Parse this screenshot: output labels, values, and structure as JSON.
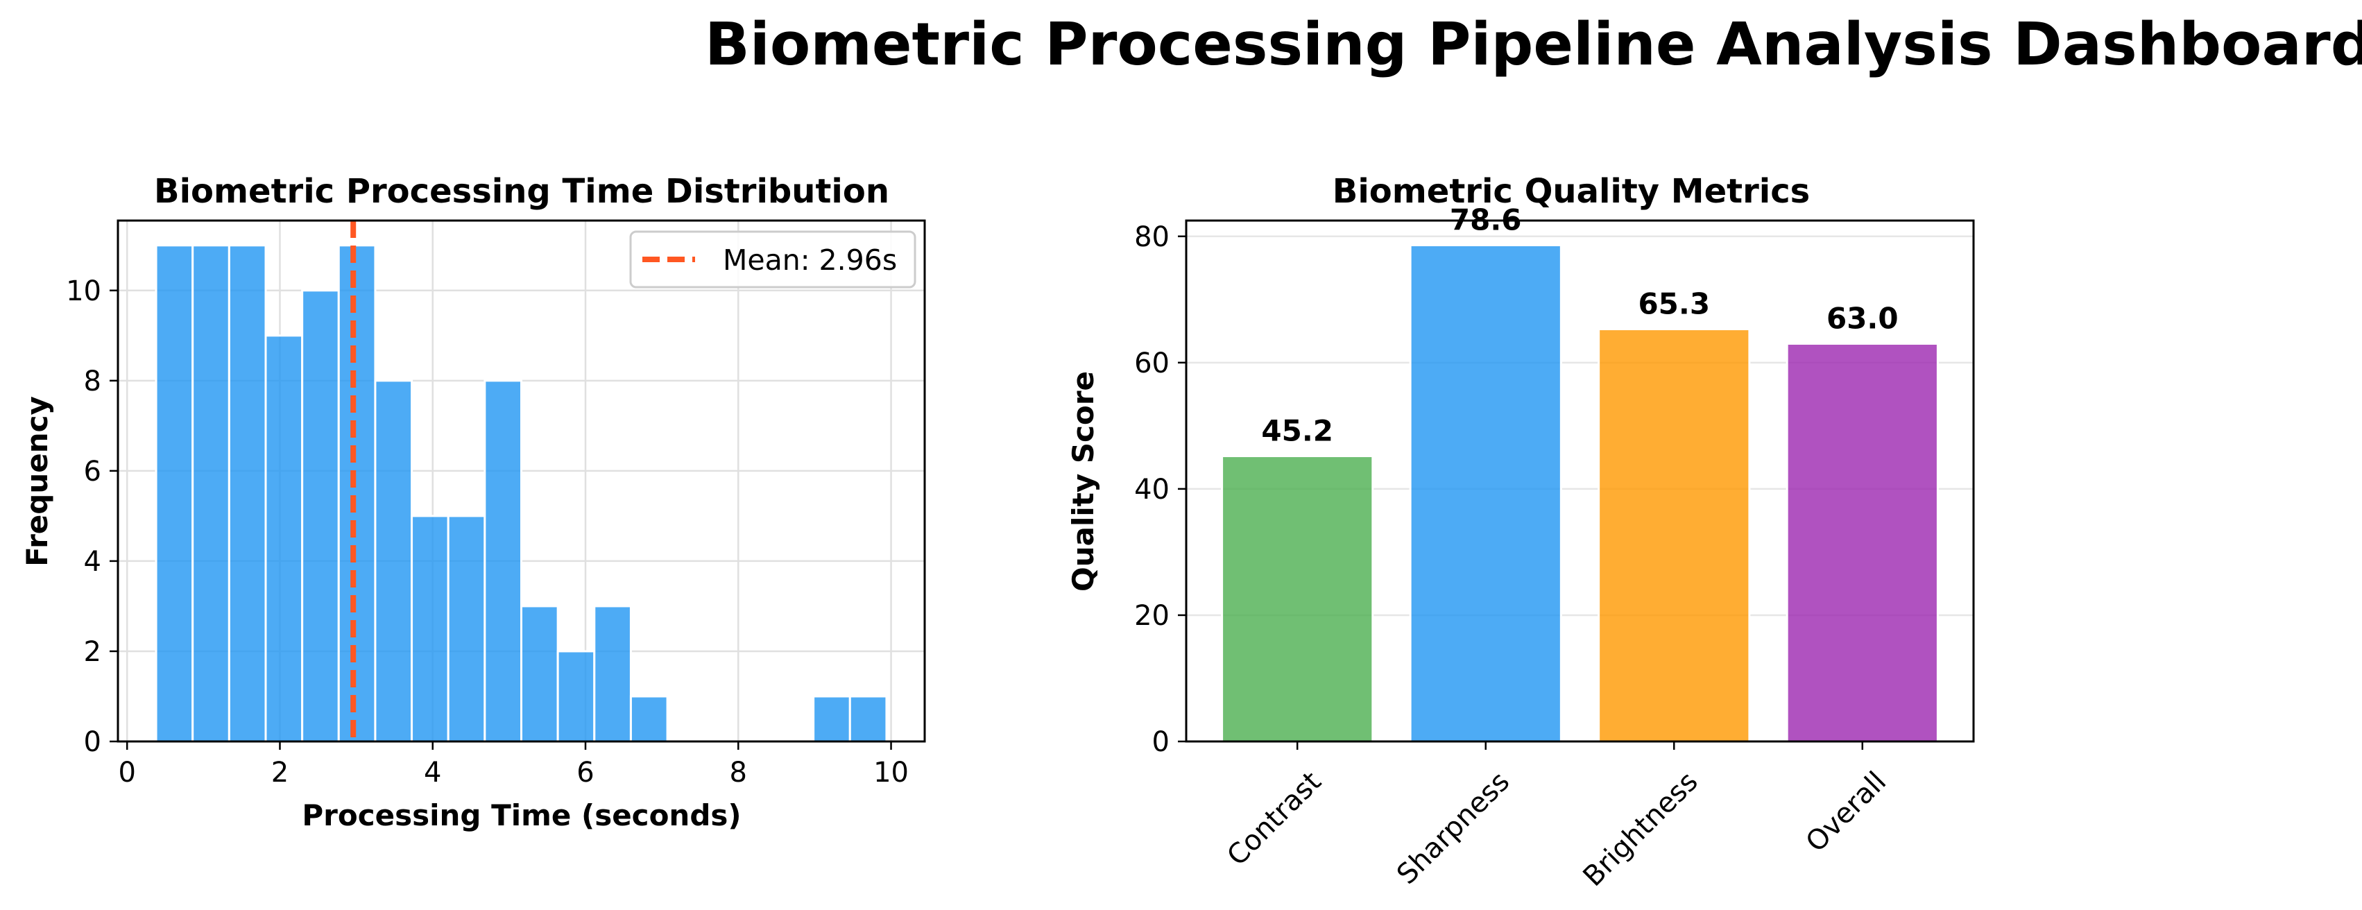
{
  "dashboard": {
    "title": "Biometric Processing Pipeline Analysis Dashboard"
  },
  "chart_data": [
    {
      "type": "bar",
      "subtype": "histogram",
      "title": "Biometric Processing Time Distribution",
      "xlabel": "Processing Time (seconds)",
      "ylabel": "Frequency",
      "bin_edges": [
        0.38,
        0.858,
        1.336,
        1.814,
        2.292,
        2.77,
        3.248,
        3.726,
        4.204,
        4.682,
        5.16,
        5.638,
        6.116,
        6.594,
        7.072,
        7.55,
        8.028,
        8.506,
        8.984,
        9.462,
        9.94
      ],
      "counts": [
        11,
        11,
        11,
        9,
        10,
        11,
        8,
        5,
        5,
        8,
        3,
        2,
        3,
        1,
        0,
        0,
        0,
        0,
        1,
        1
      ],
      "xlim": [
        -0.12,
        10.44
      ],
      "ylim": [
        0,
        11.55
      ],
      "xticks": [
        0,
        2,
        4,
        6,
        8,
        10
      ],
      "yticks": [
        0,
        2,
        4,
        6,
        8,
        10
      ],
      "mean_line": {
        "value": 2.96,
        "label": "Mean: 2.96s",
        "color": "#ff5722"
      },
      "bar_color": "#2196f3",
      "grid": true,
      "legend_position": "upper right"
    },
    {
      "type": "bar",
      "title": "Biometric Quality Metrics",
      "xlabel": "",
      "ylabel": "Quality Score",
      "categories": [
        "Contrast",
        "Sharpness",
        "Brightness",
        "Overall"
      ],
      "values": [
        45.2,
        78.6,
        65.3,
        63.0
      ],
      "value_labels": [
        "45.2",
        "78.6",
        "65.3",
        "63.0"
      ],
      "colors": [
        "#4caf50",
        "#2196f3",
        "#ff9800",
        "#9c27b0"
      ],
      "ylim": [
        0,
        82.5
      ],
      "yticks": [
        0,
        20,
        40,
        60,
        80
      ],
      "grid": true,
      "xtick_rotation": 45
    }
  ]
}
